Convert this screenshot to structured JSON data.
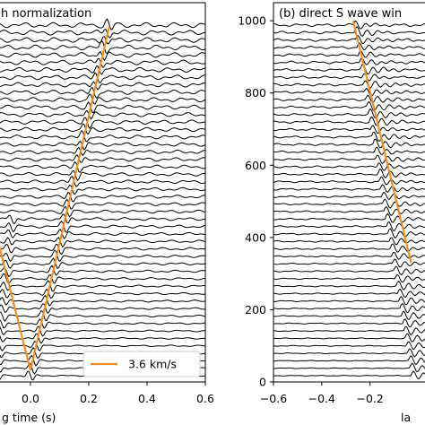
{
  "chart_data": [
    {
      "type": "line",
      "panel_title": "h normalization",
      "xlabel": "g time (s)",
      "ylabel": "",
      "xlim": [
        -0.12,
        0.6
      ],
      "x_ticks": [
        "0.0",
        "0.2",
        "0.4",
        "0.6"
      ],
      "x_tick_values": [
        0.0,
        0.2,
        0.4,
        0.6
      ],
      "trace_count": 48,
      "trace_color": "#000000",
      "moveout": {
        "color": "#f28e2b",
        "segments": [
          [
            [
              -0.115,
              0.38
            ],
            [
              0.0,
              0.0
            ]
          ],
          [
            [
              0.0,
              0.0
            ],
            [
              0.27,
              0.98
            ]
          ]
        ]
      },
      "legend": {
        "label": "3.6 km/s",
        "color": "#f28e2b",
        "position": "lower-right"
      }
    },
    {
      "type": "line",
      "panel_title": "(b)  direct S wave win",
      "xlabel": "la",
      "ylabel": "",
      "xlim": [
        -0.6,
        0.05
      ],
      "ylim": [
        0,
        1050
      ],
      "x_ticks": [
        "−0.6",
        "−0.4",
        "−0.2"
      ],
      "x_tick_values": [
        -0.6,
        -0.4,
        -0.2
      ],
      "y_ticks": [
        "0",
        "200",
        "400",
        "600",
        "800",
        "1000"
      ],
      "y_tick_values": [
        0,
        200,
        400,
        600,
        800,
        1000
      ],
      "trace_count": 48,
      "trace_color": "#000000",
      "moveout": {
        "color": "#f28e2b",
        "segments": [
          [
            [
              -0.27,
              1000
            ],
            [
              -0.03,
              330
            ]
          ]
        ]
      }
    }
  ]
}
